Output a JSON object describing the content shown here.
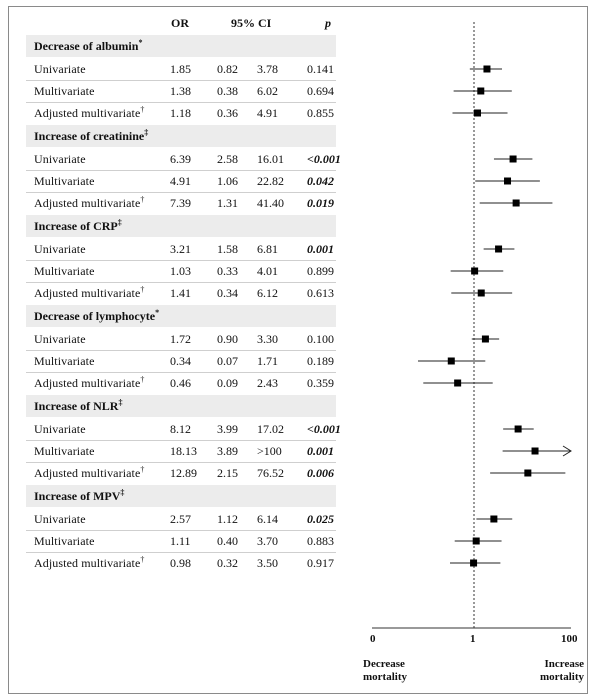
{
  "chart_data": {
    "type": "forest",
    "columns": [
      "OR",
      "95% CI",
      "p"
    ],
    "sections": [
      {
        "title": "Decrease of albumin",
        "mark": "*",
        "rows": [
          {
            "label": "Univariate",
            "mark": "",
            "or": "1.85",
            "lo": "0.82",
            "hi": "3.78",
            "p": "0.141",
            "sig": false
          },
          {
            "label": "Multivariate",
            "mark": "",
            "or": "1.38",
            "lo": "0.38",
            "hi": "6.02",
            "p": "0.694",
            "sig": false
          },
          {
            "label": "Adjusted multivariate",
            "mark": "†",
            "or": "1.18",
            "lo": "0.36",
            "hi": "4.91",
            "p": "0.855",
            "sig": false
          }
        ]
      },
      {
        "title": "Increase of creatinine",
        "mark": "‡",
        "rows": [
          {
            "label": "Univariate",
            "mark": "",
            "or": "6.39",
            "lo": "2.58",
            "hi": "16.01",
            "p": "<0.001",
            "sig": true
          },
          {
            "label": "Multivariate",
            "mark": "",
            "or": "4.91",
            "lo": "1.06",
            "hi": "22.82",
            "p": "0.042",
            "sig": true
          },
          {
            "label": "Adjusted multivariate",
            "mark": "†",
            "or": "7.39",
            "lo": "1.31",
            "hi": "41.40",
            "p": "0.019",
            "sig": true
          }
        ]
      },
      {
        "title": "Increase of CRP",
        "mark": "‡",
        "rows": [
          {
            "label": "Univariate",
            "mark": "",
            "or": "3.21",
            "lo": "1.58",
            "hi": "6.81",
            "p": "0.001",
            "sig": true
          },
          {
            "label": "Multivariate",
            "mark": "",
            "or": "1.03",
            "lo": "0.33",
            "hi": "4.01",
            "p": "0.899",
            "sig": false
          },
          {
            "label": "Adjusted multivariate",
            "mark": "†",
            "or": "1.41",
            "lo": "0.34",
            "hi": "6.12",
            "p": "0.613",
            "sig": false
          }
        ]
      },
      {
        "title": "Decrease of lymphocyte",
        "mark": "*",
        "rows": [
          {
            "label": "Univariate",
            "mark": "",
            "or": "1.72",
            "lo": "0.90",
            "hi": "3.30",
            "p": "0.100",
            "sig": false
          },
          {
            "label": "Multivariate",
            "mark": "",
            "or": "0.34",
            "lo": "0.07",
            "hi": "1.71",
            "p": "0.189",
            "sig": false
          },
          {
            "label": "Adjusted multivariate",
            "mark": "†",
            "or": "0.46",
            "lo": "0.09",
            "hi": "2.43",
            "p": "0.359",
            "sig": false
          }
        ]
      },
      {
        "title": "Increase of NLR",
        "mark": "‡",
        "rows": [
          {
            "label": "Univariate",
            "mark": "",
            "or": "8.12",
            "lo": "3.99",
            "hi": "17.02",
            "p": "<0.001",
            "sig": true
          },
          {
            "label": "Multivariate",
            "mark": "",
            "or": "18.13",
            "lo": "3.89",
            "hi": ">100",
            "p": "0.001",
            "sig": true
          },
          {
            "label": "Adjusted multivariate",
            "mark": "†",
            "or": "12.89",
            "lo": "2.15",
            "hi": "76.52",
            "p": "0.006",
            "sig": true
          }
        ]
      },
      {
        "title": "Increase of MPV",
        "mark": "‡",
        "rows": [
          {
            "label": "Univariate",
            "mark": "",
            "or": "2.57",
            "lo": "1.12",
            "hi": "6.14",
            "p": "0.025",
            "sig": true
          },
          {
            "label": "Multivariate",
            "mark": "",
            "or": "1.11",
            "lo": "0.40",
            "hi": "3.70",
            "p": "0.883",
            "sig": false
          },
          {
            "label": "Adjusted multivariate",
            "mark": "†",
            "or": "0.98",
            "lo": "0.32",
            "hi": "3.50",
            "p": "0.917",
            "sig": false
          }
        ]
      }
    ],
    "x_axis": {
      "scale": "log",
      "ticks": [
        "0",
        "1",
        "100"
      ],
      "reference_line": 1
    },
    "left_note": "Decrease mortality",
    "right_note": "Increase mortality"
  }
}
